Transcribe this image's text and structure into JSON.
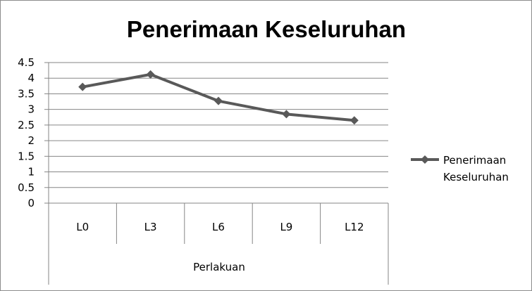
{
  "chart_data": {
    "type": "line",
    "title": "Penerimaan Keseluruhan",
    "categories": [
      "L0",
      "L3",
      "L6",
      "L9",
      "L12"
    ],
    "series": [
      {
        "name": "Penerimaan Keseluruhan",
        "values": [
          3.72,
          4.12,
          3.27,
          2.85,
          2.65
        ]
      }
    ],
    "xlabel": "Perlakuan",
    "ylabel": "",
    "ylim": [
      0,
      4.5
    ],
    "y_ticks": [
      "0",
      "0.5",
      "1",
      "1.5",
      "2",
      "2.5",
      "3",
      "3.5",
      "4",
      "4.5"
    ],
    "grid": true,
    "legend": {
      "placement": "right",
      "label_lines": [
        "Penerimaan",
        "Keseluruhan"
      ]
    },
    "colors": {
      "series": "#595959",
      "grid": "#868686",
      "axis": "#868686"
    }
  }
}
